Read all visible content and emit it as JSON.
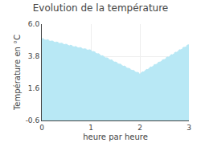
{
  "chart_data": {
    "type": "area",
    "title": "Evolution de la température",
    "xlabel": "heure par heure",
    "ylabel": "Température en °C",
    "x": [
      0,
      1,
      2,
      3
    ],
    "values": [
      5.0,
      4.2,
      2.6,
      4.6
    ],
    "color": "#b8e8f5",
    "line_style": "dotted",
    "xlim": [
      0,
      3
    ],
    "ylim": [
      -0.6,
      6.0
    ],
    "xticks": [
      0,
      1,
      2,
      3
    ],
    "yticks": [
      -0.6,
      1.6,
      3.8,
      {
        "value": 6.0,
        "label": "6.0"
      }
    ],
    "grid": true
  }
}
